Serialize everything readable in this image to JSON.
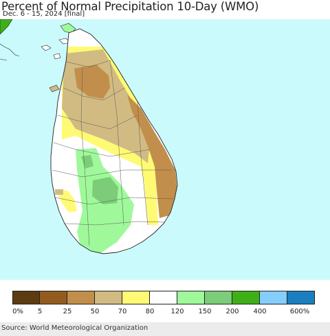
{
  "header": {
    "title": "Percent of Normal Precipitation 10-Day (WMO)",
    "subtitle": "Dec. 6 - 15, 2024 [final]"
  },
  "map": {
    "region": "Sri Lanka",
    "ocean_color": "#cbfafd",
    "land_default_color": "#ffffff"
  },
  "legend": {
    "colors": [
      "#5c3c10",
      "#935c1e",
      "#c18f4b",
      "#d1bb83",
      "#fffa74",
      "#ffffff",
      "#9ff99a",
      "#7ccc79",
      "#3faf18",
      "#85cefc",
      "#1a7ebf"
    ],
    "labels": [
      "0%",
      "5",
      "25",
      "50",
      "70",
      "80",
      "120",
      "150",
      "200",
      "400",
      "600%"
    ]
  },
  "footer": {
    "source": "Source: World Meteorological Organization"
  }
}
